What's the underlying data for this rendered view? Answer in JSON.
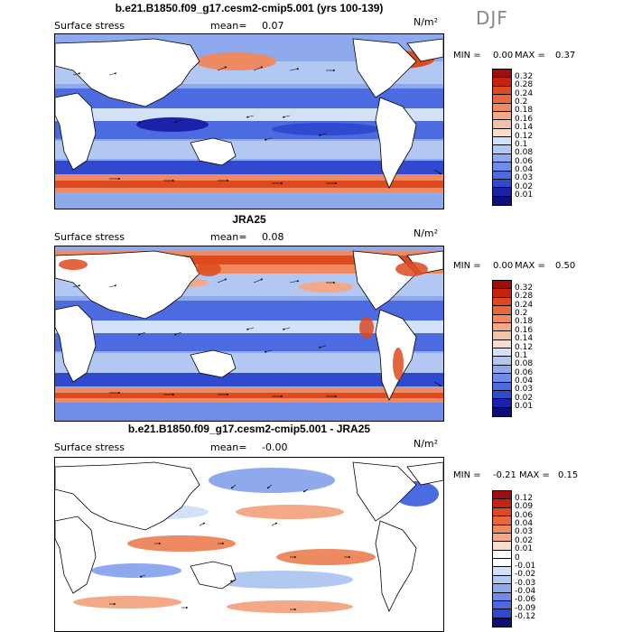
{
  "season": "DJF",
  "panels": [
    {
      "title": "b.e21.B1850.f09_g17.cesm2-cmip5.001 (yrs 100-139)",
      "field_label": "Surface stress",
      "mean_label": "mean=",
      "mean_value": "0.07",
      "units": "N/m²",
      "min_label": "MIN =",
      "min_value": "0.00",
      "max_label": "MAX =",
      "max_value": "0.37",
      "colorbar_levels": [
        "0.32",
        "0.28",
        "0.24",
        "0.2",
        "0.18",
        "0.16",
        "0.14",
        "0.12",
        "0.1",
        "0.08",
        "0.06",
        "0.04",
        "0.03",
        "0.02",
        "0.01"
      ]
    },
    {
      "title": "JRA25",
      "field_label": "Surface stress",
      "mean_label": "mean=",
      "mean_value": "0.08",
      "units": "N/m²",
      "min_label": "MIN =",
      "min_value": "0.00",
      "max_label": "MAX =",
      "max_value": "0.50",
      "colorbar_levels": [
        "0.32",
        "0.28",
        "0.24",
        "0.2",
        "0.18",
        "0.16",
        "0.14",
        "0.12",
        "0.1",
        "0.08",
        "0.06",
        "0.04",
        "0.03",
        "0.02",
        "0.01"
      ]
    },
    {
      "title": "b.e21.B1850.f09_g17.cesm2-cmip5.001 - JRA25",
      "field_label": "Surface stress",
      "mean_label": "mean=",
      "mean_value": "-0.00",
      "units": "N/m²",
      "min_label": "MIN =",
      "min_value": "-0.21",
      "max_label": "MAX =",
      "max_value": "0.15",
      "colorbar_levels": [
        "0.12",
        "0.09",
        "0.06",
        "0.04",
        "0.03",
        "0.02",
        "0.01",
        "0",
        "-0.01",
        "-0.02",
        "-0.03",
        "-0.04",
        "-0.06",
        "-0.09",
        "-0.12"
      ]
    }
  ],
  "colors": {
    "abs_scale": [
      "#a00d0d",
      "#c7220f",
      "#dd4a1f",
      "#e8683c",
      "#ee8a62",
      "#f3a888",
      "#f5c2a8",
      "#f8ddcc",
      "#d2e1f7",
      "#b2c8f2",
      "#8eaaec",
      "#6f8ce6",
      "#4d6be0",
      "#2f49cf",
      "#1b22a8",
      "#0e0e78"
    ],
    "diff_scale": [
      "#a00d0d",
      "#c7220f",
      "#dd4a1f",
      "#e8683c",
      "#ee8a62",
      "#f3a888",
      "#f8ddcc",
      "#ffffff",
      "#ffffff",
      "#d2e1f7",
      "#b2c8f2",
      "#8eaaec",
      "#6f8ce6",
      "#4d6be0",
      "#2f49cf",
      "#0e0e78"
    ],
    "land": "#ffffff"
  }
}
